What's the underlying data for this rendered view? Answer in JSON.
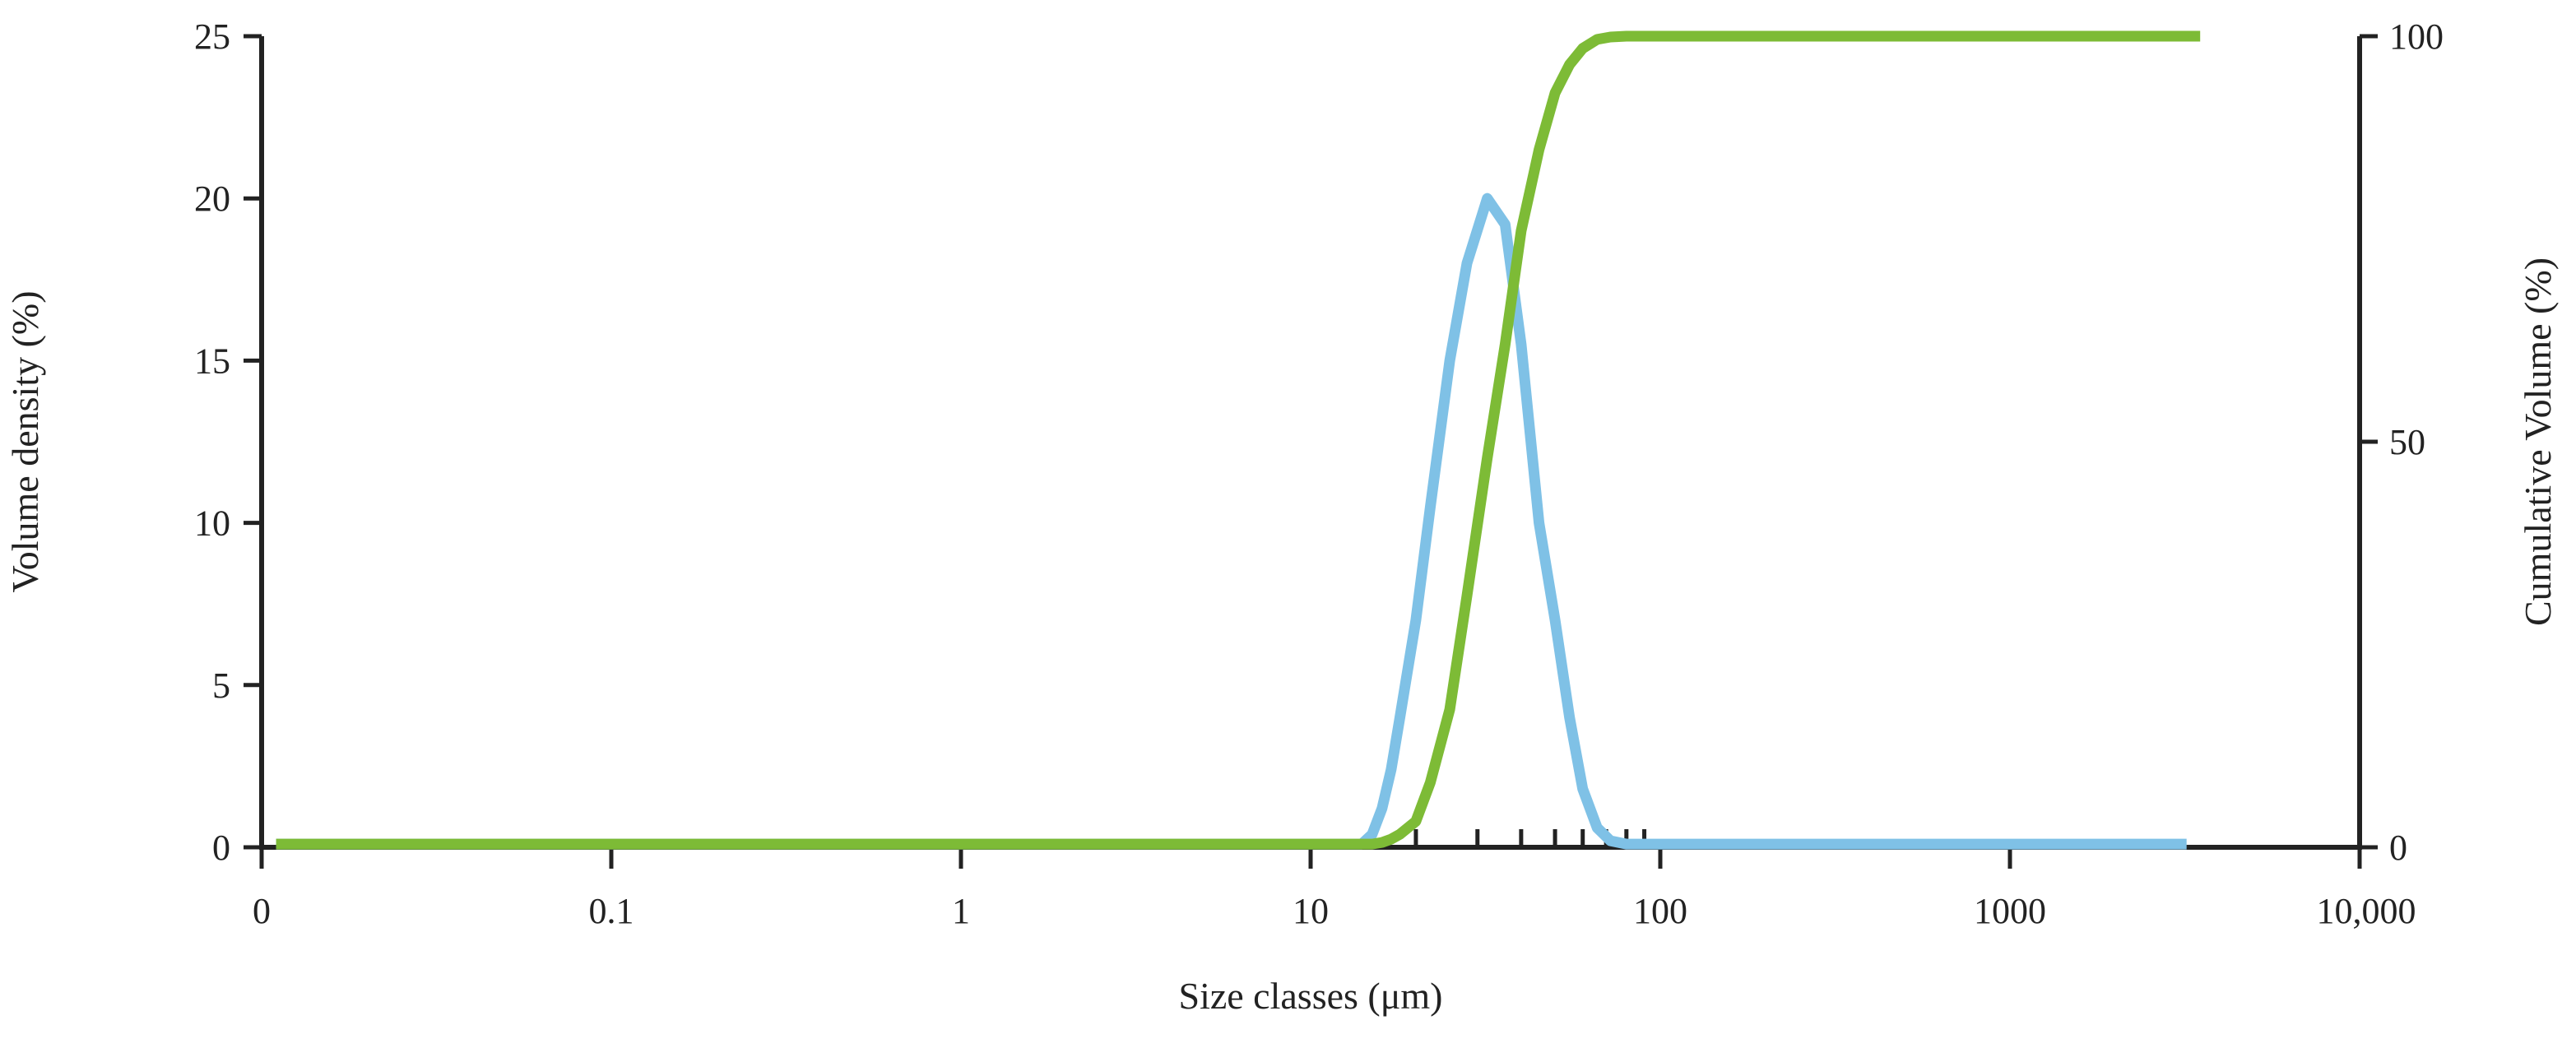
{
  "chart_data": {
    "type": "line",
    "title": "",
    "xlabel": "Size classes (μm)",
    "ylabel": "Volume density (%)",
    "y2label": "Cumulative Volume (%)",
    "x_scale": "log",
    "x_ticks": [
      0.01,
      0.1,
      1,
      10,
      100,
      1000,
      10000
    ],
    "x_tick_labels": [
      "0",
      "0.1",
      "1",
      "10",
      "100",
      "1000",
      "10,000"
    ],
    "x_minor_ticks": [
      20,
      30,
      40,
      50,
      60,
      70,
      80,
      90
    ],
    "xlim": [
      0.01,
      10000
    ],
    "ylim": [
      0,
      25
    ],
    "y_ticks": [
      0,
      5,
      10,
      15,
      20,
      25
    ],
    "y2lim": [
      0,
      100
    ],
    "y2_ticks": [
      0,
      50,
      100
    ],
    "grid": false,
    "legend": "none",
    "series": [
      {
        "axis": "left",
        "color": "#7fc1e6",
        "x": [
          0.011,
          14,
          15,
          16,
          17,
          18,
          20,
          22,
          25,
          28,
          32,
          36,
          40,
          45,
          50,
          55,
          60,
          66,
          72,
          80,
          90,
          100,
          200,
          500,
          1000,
          2000,
          3200
        ],
        "y": [
          0.1,
          0.1,
          0.4,
          1.2,
          2.4,
          4.0,
          7.0,
          10.5,
          15.0,
          18.0,
          20.0,
          19.2,
          15.5,
          10.0,
          7.0,
          4.0,
          1.8,
          0.6,
          0.2,
          0.1,
          0.1,
          0.1,
          0.1,
          0.1,
          0.1,
          0.1,
          0.1
        ]
      },
      {
        "axis": "right",
        "color": "#7dbb36",
        "x": [
          0.011,
          15,
          16,
          17,
          18,
          20,
          22,
          25,
          28,
          32,
          36,
          40,
          45,
          50,
          55,
          60,
          66,
          72,
          80,
          100,
          200,
          500,
          1000,
          2000,
          3500
        ],
        "y": [
          0.4,
          0.4,
          0.6,
          1.0,
          1.6,
          3.2,
          8.0,
          17.0,
          31.0,
          48.0,
          62.0,
          76.0,
          86.0,
          93.0,
          96.5,
          98.5,
          99.6,
          99.9,
          100,
          100,
          100,
          100,
          100,
          100,
          100
        ]
      }
    ]
  }
}
